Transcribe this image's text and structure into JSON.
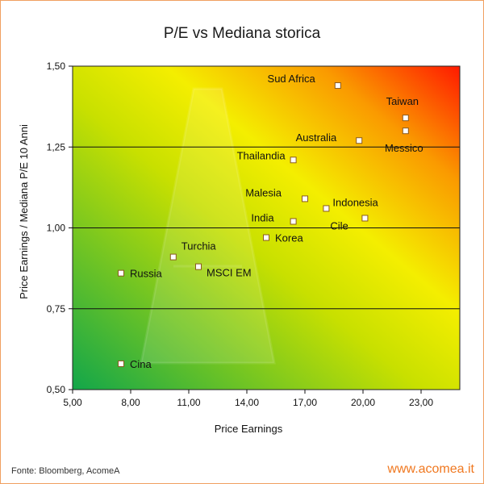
{
  "chart_data": {
    "type": "scatter",
    "title": "P/E vs Mediana storica",
    "xlabel": "Price Earnings",
    "ylabel": "Price Earnings / Mediana P/E 10 Anni",
    "xlim": [
      5,
      25
    ],
    "ylim": [
      0.5,
      1.5
    ],
    "x_ticks": [
      "5,00",
      "8,00",
      "11,00",
      "14,00",
      "17,00",
      "20,00",
      "23,00"
    ],
    "y_ticks": [
      "0,50",
      "0,75",
      "1,00",
      "1,25",
      "1,50"
    ],
    "grid": "horizontal",
    "points": [
      {
        "name": "Sud Africa",
        "x": 18.7,
        "y": 1.44,
        "color": "#ffffff"
      },
      {
        "name": "Taiwan",
        "x": 22.2,
        "y": 1.34,
        "color": "#ffffff"
      },
      {
        "name": "Messico",
        "x": 22.2,
        "y": 1.3,
        "color": "#ffffff"
      },
      {
        "name": "Australia",
        "x": 19.8,
        "y": 1.27,
        "color": "#ffffff"
      },
      {
        "name": "Thailandia",
        "x": 16.4,
        "y": 1.21,
        "color": "#ffffff"
      },
      {
        "name": "Malesia",
        "x": 17.0,
        "y": 1.09,
        "color": "#ffffff"
      },
      {
        "name": "Indonesia",
        "x": 18.1,
        "y": 1.06,
        "color": "#ffffff"
      },
      {
        "name": "Cile",
        "x": 20.1,
        "y": 1.03,
        "color": "#ffffff"
      },
      {
        "name": "India",
        "x": 16.4,
        "y": 1.02,
        "color": "#ffffff"
      },
      {
        "name": "Korea",
        "x": 15.0,
        "y": 0.97,
        "color": "#ffffff"
      },
      {
        "name": "Turchia",
        "x": 10.2,
        "y": 0.91,
        "color": "#ffffff"
      },
      {
        "name": "MSCI EM",
        "x": 11.5,
        "y": 0.88,
        "color": "#ffffff"
      },
      {
        "name": "Russia",
        "x": 7.5,
        "y": 0.86,
        "color": "#ffffff"
      },
      {
        "name": "Cina",
        "x": 7.5,
        "y": 0.58,
        "color": "#ffffff"
      }
    ]
  },
  "footer": {
    "source": "Fonte: Bloomberg, AcomeA",
    "website": "www.acomea.it"
  },
  "colors": {
    "gradient_low": "#1aa84a",
    "gradient_mid": "#f0ee00",
    "gradient_high": "#ff1a00",
    "accent": "#f07820"
  }
}
